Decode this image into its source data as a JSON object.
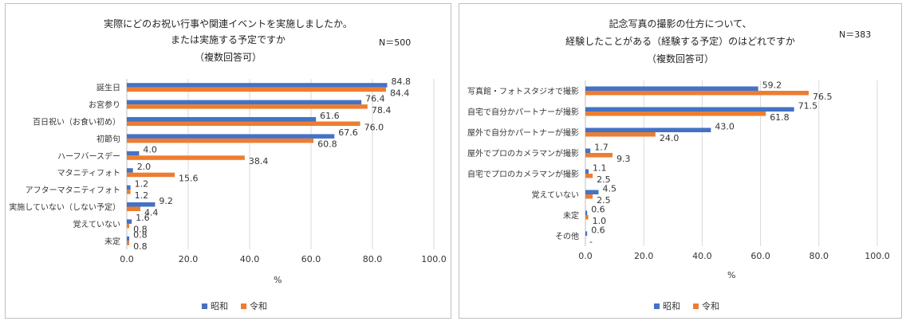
{
  "colors": {
    "showa": "#4472C4",
    "reiwa": "#ED7D31",
    "grid": "#d9d9d9",
    "axis": "#bfbfbf"
  },
  "chart_data": [
    {
      "type": "bar",
      "orientation": "horizontal",
      "title_lines": [
        "実際にどのお祝い行事や関連イベントを実施しましたか。",
        "または実施する予定ですか",
        "（複数回答可）"
      ],
      "n_label": "N＝500",
      "xlabel": "%",
      "xlim": [
        0,
        100
      ],
      "xticks": [
        "0.0",
        "20.0",
        "40.0",
        "60.0",
        "80.0",
        "100.0"
      ],
      "grid": true,
      "legend_position": "bottom",
      "categories": [
        "誕生日",
        "お宮参り",
        "百日祝い（お食い初め）",
        "初節句",
        "ハーフバースデー",
        "マタニティフォト",
        "アフターマタニティフォト",
        "実施していない（しない予定）",
        "覚えていない",
        "未定"
      ],
      "series": [
        {
          "name": "昭和",
          "values": [
            84.8,
            76.4,
            61.6,
            67.6,
            4.0,
            2.0,
            1.2,
            9.2,
            1.6,
            0.8
          ],
          "labels": [
            "84.8",
            "76.4",
            "61.6",
            "67.6",
            "4.0",
            "2.0",
            "1.2",
            "9.2",
            "1.6",
            "0.8"
          ]
        },
        {
          "name": "令和",
          "values": [
            84.4,
            78.4,
            76.0,
            60.8,
            38.4,
            15.6,
            1.2,
            4.4,
            0.8,
            0.8
          ],
          "labels": [
            "84.4",
            "78.4",
            "76.0",
            "60.8",
            "38.4",
            "15.6",
            "1.2",
            "4.4",
            "0.8",
            "0.8"
          ]
        }
      ]
    },
    {
      "type": "bar",
      "orientation": "horizontal",
      "title_lines": [
        "記念写真の撮影の仕方について、",
        "経験したことがある（経験する予定）のはどれですか",
        "（複数回答可）"
      ],
      "n_label": "N＝383",
      "xlabel": "%",
      "xlim": [
        0,
        100
      ],
      "xticks": [
        "0.0",
        "20.0",
        "40.0",
        "60.0",
        "80.0",
        "100.0"
      ],
      "grid": true,
      "legend_position": "bottom",
      "categories": [
        "写真館・フォトスタジオで撮影",
        "自宅で自分かパートナーが撮影",
        "屋外で自分かパートナーが撮影",
        "屋外でプロのカメラマンが撮影",
        "自宅でプロのカメラマンが撮影",
        "覚えていない",
        "未定",
        "その他"
      ],
      "series": [
        {
          "name": "昭和",
          "values": [
            59.2,
            71.5,
            43.0,
            1.7,
            1.1,
            4.5,
            0.6,
            0.6
          ],
          "labels": [
            "59.2",
            "71.5",
            "43.0",
            "1.7",
            "1.1",
            "4.5",
            "0.6",
            "0.6"
          ]
        },
        {
          "name": "令和",
          "values": [
            76.5,
            61.8,
            24.0,
            9.3,
            2.5,
            2.5,
            1.0,
            0
          ],
          "labels": [
            "76.5",
            "61.8",
            "24.0",
            "9.3",
            "2.5",
            "2.5",
            "1.0",
            "-"
          ]
        }
      ]
    }
  ]
}
